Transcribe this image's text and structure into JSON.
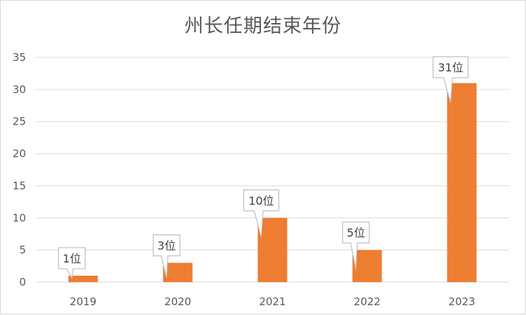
{
  "chart_data": {
    "type": "bar",
    "title": "州长任期结束年份",
    "xlabel": "",
    "ylabel": "",
    "categories": [
      "2019",
      "2020",
      "2021",
      "2022",
      "2023"
    ],
    "values": [
      1,
      3,
      10,
      5,
      31
    ],
    "data_labels": [
      "1位",
      "3位",
      "10位",
      "5位",
      "31位"
    ],
    "ylim": [
      0,
      35
    ],
    "yticks": [
      0,
      5,
      10,
      15,
      20,
      25,
      30,
      35
    ],
    "grid": true,
    "legend": "none",
    "colors": {
      "bar": "#ED7D31",
      "grid": "#D9D9D9",
      "text": "#595959",
      "callout_border": "#BFBFBF",
      "callout_fill": "#FFFFFF"
    }
  }
}
